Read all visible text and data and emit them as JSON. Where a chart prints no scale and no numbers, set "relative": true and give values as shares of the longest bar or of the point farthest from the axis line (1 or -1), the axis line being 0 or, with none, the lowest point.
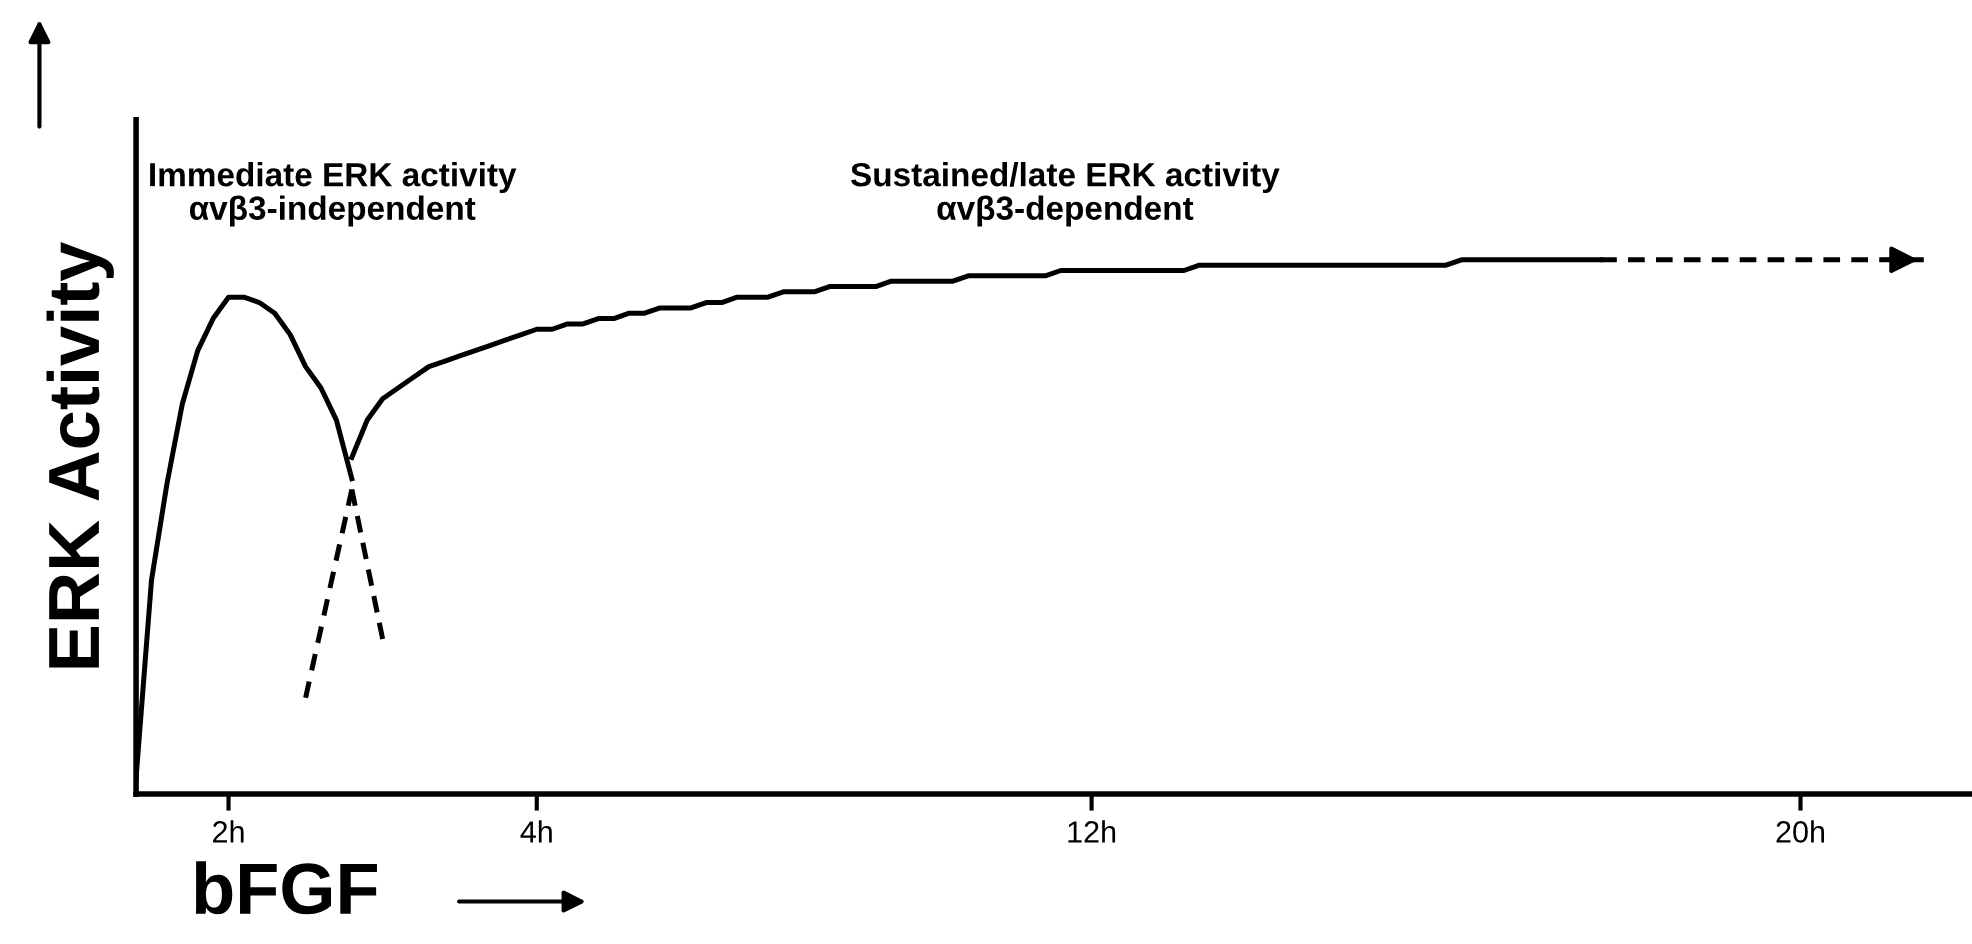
{
  "chart_data": {
    "type": "line",
    "relative": true,
    "xlabel": "bFGF",
    "ylabel": "ERK Activity",
    "categories": [
      null,
      null,
      null,
      null,
      null,
      null,
      "2h",
      null,
      null,
      null,
      null,
      null,
      null,
      null,
      null,
      null,
      null,
      null,
      null,
      null,
      null,
      null,
      null,
      null,
      null,
      null,
      "4h",
      null,
      null,
      null,
      null,
      null,
      null,
      null,
      null,
      null,
      null,
      null,
      null,
      null,
      null,
      null,
      null,
      null,
      null,
      null,
      null,
      null,
      null,
      null,
      null,
      null,
      null,
      null,
      null,
      null,
      null,
      null,
      null,
      null,
      null,
      null,
      "12h",
      null,
      null,
      null,
      null,
      null,
      null,
      null,
      null,
      null,
      null,
      null,
      null,
      null,
      null,
      null,
      null,
      null,
      null,
      null,
      null,
      null,
      null,
      null,
      null,
      null,
      null,
      null,
      null,
      null,
      null,
      null,
      null,
      null,
      null,
      null,
      null,
      null,
      null,
      null,
      null,
      null,
      null,
      null,
      null,
      null,
      "20h",
      null,
      null,
      null,
      null,
      null,
      null,
      null,
      null,
      null,
      null,
      null
    ],
    "grid": false,
    "legend": false,
    "marker": "none",
    "annotations": [
      "Immediate ERK activity\nαvβ3-independent",
      "Sustained/late ERK activity\nαvβ3-dependent"
    ],
    "series": [
      {
        "color": "#000000",
        "line_style": "solid",
        "values": [
          0.03,
          0.4,
          0.58,
          0.73,
          0.83,
          0.89,
          0.93,
          0.93,
          0.92,
          0.9,
          0.86,
          0.8,
          0.76,
          0.7,
          0.59,
          null,
          null,
          null,
          null,
          null,
          null,
          null,
          null,
          null,
          null,
          null,
          null,
          null,
          null,
          null,
          null,
          null,
          null,
          null,
          null,
          null,
          null,
          null,
          null,
          null,
          null,
          null,
          null,
          null,
          null,
          null,
          null,
          null,
          null,
          null,
          null,
          null,
          null,
          null,
          null,
          null,
          null,
          null,
          null,
          null,
          null,
          null,
          null,
          null,
          null,
          null,
          null,
          null,
          null,
          null,
          null,
          null,
          null,
          null,
          null,
          null,
          null,
          null,
          null,
          null,
          null,
          null,
          null,
          null,
          null,
          null,
          null,
          null,
          null,
          null,
          null,
          null,
          null,
          null,
          null,
          null,
          null,
          null,
          null,
          null,
          null,
          null,
          null,
          null,
          null,
          null,
          null,
          null,
          null,
          null,
          null,
          null,
          null,
          null,
          null,
          null,
          null,
          null,
          null,
          null
        ]
      },
      {
        "color": "#000000",
        "line_style": "dashed",
        "values": [
          null,
          null,
          null,
          null,
          null,
          null,
          null,
          null,
          null,
          null,
          null,
          0.18,
          0.31,
          0.44,
          0.57,
          null,
          null,
          null,
          null,
          null,
          null,
          null,
          null,
          null,
          null,
          null,
          null,
          null,
          null,
          null,
          null,
          null,
          null,
          null,
          null,
          null,
          null,
          null,
          null,
          null,
          null,
          null,
          null,
          null,
          null,
          null,
          null,
          null,
          null,
          null,
          null,
          null,
          null,
          null,
          null,
          null,
          null,
          null,
          null,
          null,
          null,
          null,
          null,
          null,
          null,
          null,
          null,
          null,
          null,
          null,
          null,
          null,
          null,
          null,
          null,
          null,
          null,
          null,
          null,
          null,
          null,
          null,
          null,
          null,
          null,
          null,
          null,
          null,
          null,
          null,
          null,
          null,
          null,
          null,
          null,
          null,
          null,
          null,
          null,
          null,
          null,
          null,
          null,
          null,
          null,
          null,
          null,
          null,
          null,
          null,
          null,
          null,
          null,
          null,
          null,
          null,
          null,
          null,
          null,
          null
        ]
      },
      {
        "color": "#000000",
        "line_style": "dashed",
        "values": [
          null,
          null,
          null,
          null,
          null,
          null,
          null,
          null,
          null,
          null,
          null,
          null,
          null,
          null,
          0.57,
          0.43,
          0.29,
          null,
          null,
          null,
          null,
          null,
          null,
          null,
          null,
          null,
          null,
          null,
          null,
          null,
          null,
          null,
          null,
          null,
          null,
          null,
          null,
          null,
          null,
          null,
          null,
          null,
          null,
          null,
          null,
          null,
          null,
          null,
          null,
          null,
          null,
          null,
          null,
          null,
          null,
          null,
          null,
          null,
          null,
          null,
          null,
          null,
          null,
          null,
          null,
          null,
          null,
          null,
          null,
          null,
          null,
          null,
          null,
          null,
          null,
          null,
          null,
          null,
          null,
          null,
          null,
          null,
          null,
          null,
          null,
          null,
          null,
          null,
          null,
          null,
          null,
          null,
          null,
          null,
          null,
          null,
          null,
          null,
          null,
          null,
          null,
          null,
          null,
          null,
          null,
          null,
          null,
          null,
          null,
          null,
          null,
          null,
          null,
          null,
          null,
          null,
          null,
          null,
          null,
          null
        ]
      },
      {
        "color": "#000000",
        "line_style": "solid",
        "values": [
          null,
          null,
          null,
          null,
          null,
          null,
          null,
          null,
          null,
          null,
          null,
          null,
          null,
          null,
          0.63,
          0.7,
          0.74,
          0.76,
          0.78,
          0.8,
          0.81,
          0.82,
          0.83,
          0.84,
          0.85,
          0.86,
          0.87,
          0.87,
          0.88,
          0.88,
          0.89,
          0.89,
          0.9,
          0.9,
          0.91,
          0.91,
          0.91,
          0.92,
          0.92,
          0.93,
          0.93,
          0.93,
          0.94,
          0.94,
          0.94,
          0.95,
          0.95,
          0.95,
          0.95,
          0.96,
          0.96,
          0.96,
          0.96,
          0.96,
          0.97,
          0.97,
          0.97,
          0.97,
          0.97,
          0.97,
          0.98,
          0.98,
          0.98,
          0.98,
          0.98,
          0.98,
          0.98,
          0.98,
          0.98,
          0.99,
          0.99,
          0.99,
          0.99,
          0.99,
          0.99,
          0.99,
          0.99,
          0.99,
          0.99,
          0.99,
          0.99,
          0.99,
          0.99,
          0.99,
          0.99,
          0.99,
          1.0,
          1.0,
          1.0,
          1.0,
          1.0,
          1.0,
          1.0,
          1.0,
          1.0,
          1.0,
          null,
          null,
          null,
          null,
          null,
          null,
          null,
          null,
          null,
          null,
          null,
          null,
          null,
          null,
          null,
          null,
          null,
          null,
          null,
          null,
          null,
          null,
          null,
          null
        ]
      },
      {
        "color": "#000000",
        "line_style": "dashed",
        "values": [
          null,
          null,
          null,
          null,
          null,
          null,
          null,
          null,
          null,
          null,
          null,
          null,
          null,
          null,
          null,
          null,
          null,
          null,
          null,
          null,
          null,
          null,
          null,
          null,
          null,
          null,
          null,
          null,
          null,
          null,
          null,
          null,
          null,
          null,
          null,
          null,
          null,
          null,
          null,
          null,
          null,
          null,
          null,
          null,
          null,
          null,
          null,
          null,
          null,
          null,
          null,
          null,
          null,
          null,
          null,
          null,
          null,
          null,
          null,
          null,
          null,
          null,
          null,
          null,
          null,
          null,
          null,
          null,
          null,
          null,
          null,
          null,
          null,
          null,
          null,
          null,
          null,
          null,
          null,
          null,
          null,
          null,
          null,
          null,
          null,
          null,
          null,
          null,
          null,
          null,
          null,
          null,
          null,
          null,
          null,
          1.0,
          1.0,
          1.0,
          1.0,
          1.0,
          1.0,
          1.0,
          1.0,
          1.0,
          1.0,
          1.0,
          1.0,
          1.0,
          1.0,
          1.0,
          1.0,
          1.0,
          1.0,
          1.0,
          1.0,
          1.0,
          1.0,
          null,
          null,
          null
        ]
      }
    ]
  }
}
